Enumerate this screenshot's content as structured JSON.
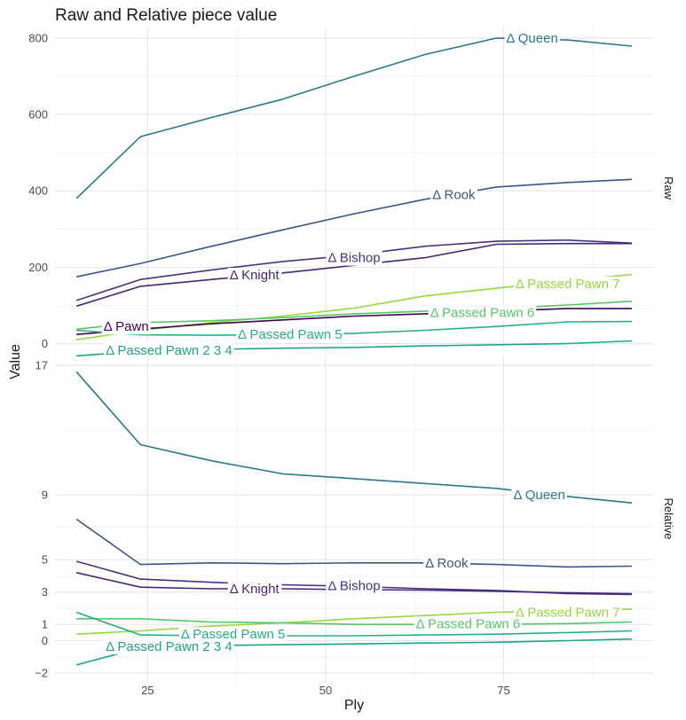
{
  "chart_data": {
    "type": "line",
    "title": "Raw and Relative piece value",
    "xlabel": "Ply",
    "ylabel": "Value",
    "x": [
      15,
      24,
      34,
      44,
      54,
      64,
      74,
      84,
      93
    ],
    "x_ticks": [
      25,
      50,
      75
    ],
    "x_minor_ticks": [
      37.5,
      62.5,
      87.5
    ],
    "xlim": [
      12,
      96
    ],
    "panels": [
      {
        "name": "Raw",
        "ylim": [
          -15,
          830
        ],
        "y_ticks": [
          0,
          200,
          400,
          600,
          800
        ],
        "y_tick_labels": [
          "0",
          "200",
          "400",
          "600",
          "800"
        ],
        "y_minor_ticks": [
          100,
          300,
          500,
          700
        ],
        "series": [
          {
            "name": "Δ Queen",
            "color": "#2A788E",
            "values": [
              380,
              542,
              592,
              640,
              700,
              757,
              800,
              795,
              779
            ],
            "label_x": 79,
            "label_y": 800
          },
          {
            "name": "Δ Rook",
            "color": "#39568C",
            "values": [
              175,
              210,
              255,
              298,
              340,
              378,
              410,
              422,
              430
            ],
            "label_x": 68,
            "label_y": 390
          },
          {
            "name": "Δ Bishop",
            "color": "#453581",
            "values": [
              113,
              168,
              193,
              215,
              232,
              255,
              268,
              271,
              263
            ],
            "label_x": 54,
            "label_y": 225
          },
          {
            "name": "Δ Knight",
            "color": "#482576",
            "values": [
              98,
              150,
              168,
              185,
              205,
              225,
              260,
              262,
              262
            ],
            "label_x": 40,
            "label_y": 180
          },
          {
            "name": "Δ Passed Pawn 7",
            "color": "#95D840",
            "values": [
              10,
              35,
              55,
              72,
              93,
              125,
              145,
              165,
              181
            ],
            "label_x": 84,
            "label_y": 157
          },
          {
            "name": "Δ Passed Pawn 6",
            "color": "#56C667",
            "values": [
              38,
              55,
              60,
              68,
              78,
              85,
              92,
              101,
              111
            ],
            "label_x": 72,
            "label_y": 81
          },
          {
            "name": "Δ Pawn",
            "color": "#440154",
            "values": [
              24,
              38,
              52,
              62,
              72,
              78,
              85,
              92,
              92
            ],
            "label_x": 22,
            "label_y": 45
          },
          {
            "name": "Δ Passed Pawn 5",
            "color": "#29AF7F",
            "values": [
              35,
              23,
              22,
              24,
              27,
              35,
              45,
              57,
              58
            ],
            "label_x": 45,
            "label_y": 24
          },
          {
            "name": "Δ Passed Pawn 2 3 4",
            "color": "#20A486",
            "values": [
              -32,
              -20,
              -15,
              -12,
              -10,
              -6,
              -3,
              0,
              7
            ],
            "label_x": 28,
            "label_y": -17
          }
        ]
      },
      {
        "name": "Relative",
        "ylim": [
          -2.6,
          17.6
        ],
        "y_ticks": [
          -2,
          0,
          1,
          3,
          5,
          9,
          17
        ],
        "y_tick_labels": [
          "−2",
          "0",
          "1",
          "3",
          "5",
          "9",
          "17"
        ],
        "y_minor_ticks": [
          -1,
          2,
          4,
          7,
          13
        ],
        "series": [
          {
            "name": "Δ Queen",
            "color": "#2A788E",
            "values": [
              16.6,
              12.1,
              11.1,
              10.3,
              10.0,
              9.7,
              9.4,
              8.9,
              8.5
            ],
            "label_x": 80,
            "label_y": 9.0
          },
          {
            "name": "Δ Rook",
            "color": "#39568C",
            "values": [
              7.5,
              4.7,
              4.8,
              4.75,
              4.8,
              4.8,
              4.7,
              4.55,
              4.6
            ],
            "label_x": 67,
            "label_y": 4.8
          },
          {
            "name": "Δ Bishop",
            "color": "#453581",
            "values": [
              4.9,
              3.8,
              3.6,
              3.45,
              3.35,
              3.2,
              3.1,
              2.9,
              2.85
            ],
            "label_x": 54,
            "label_y": 3.4
          },
          {
            "name": "Δ Knight",
            "color": "#482576",
            "values": [
              4.2,
              3.3,
              3.2,
              3.2,
              3.15,
              3.12,
              3.05,
              2.95,
              2.9
            ],
            "label_x": 40,
            "label_y": 3.2
          },
          {
            "name": "Δ Passed Pawn 7",
            "color": "#95D840",
            "values": [
              0.4,
              0.6,
              0.9,
              1.1,
              1.35,
              1.55,
              1.75,
              1.85,
              1.95
            ],
            "label_x": 84,
            "label_y": 1.75
          },
          {
            "name": "Δ Passed Pawn 6",
            "color": "#56C667",
            "values": [
              1.35,
              1.35,
              1.15,
              1.1,
              1.0,
              1.0,
              1.0,
              1.05,
              1.15
            ],
            "label_x": 70,
            "label_y": 1.05
          },
          {
            "name": "Δ Passed Pawn 5",
            "color": "#29AF7F",
            "values": [
              1.75,
              0.35,
              0.3,
              0.3,
              0.3,
              0.35,
              0.4,
              0.5,
              0.6
            ],
            "label_x": 37,
            "label_y": 0.4
          },
          {
            "name": "Δ Passed Pawn 2 3 4",
            "color": "#20A486",
            "values": [
              -1.5,
              -0.45,
              -0.3,
              -0.25,
              -0.2,
              -0.15,
              -0.1,
              0.0,
              0.1
            ],
            "label_x": 28,
            "label_y": -0.35
          }
        ]
      }
    ]
  }
}
